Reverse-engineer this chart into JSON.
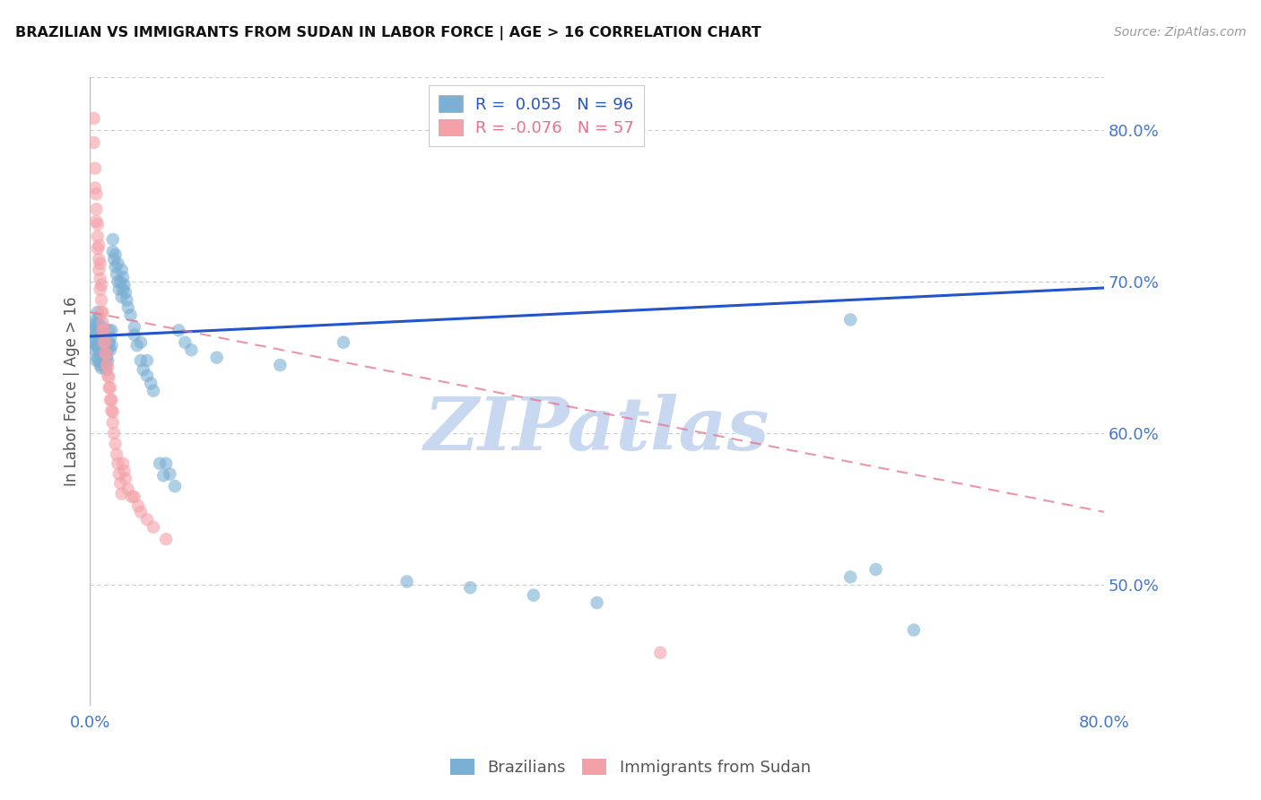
{
  "title": "BRAZILIAN VS IMMIGRANTS FROM SUDAN IN LABOR FORCE | AGE > 16 CORRELATION CHART",
  "source": "Source: ZipAtlas.com",
  "ylabel": "In Labor Force | Age > 16",
  "x_min": 0.0,
  "x_max": 0.8,
  "y_min": 0.42,
  "y_max": 0.835,
  "x_ticks": [
    0.0,
    0.1,
    0.2,
    0.3,
    0.4,
    0.5,
    0.6,
    0.7,
    0.8
  ],
  "x_tick_labels": [
    "0.0%",
    "",
    "",
    "",
    "",
    "",
    "",
    "",
    "80.0%"
  ],
  "y_ticks_right": [
    0.5,
    0.6,
    0.7,
    0.8
  ],
  "y_tick_labels_right": [
    "50.0%",
    "60.0%",
    "70.0%",
    "80.0%"
  ],
  "grid_color": "#cccccc",
  "background_color": "#ffffff",
  "blue_color": "#7bafd4",
  "pink_color": "#f4a0a8",
  "trend_blue_color": "#2255cc",
  "trend_pink_color": "#e8708a",
  "R_blue": 0.055,
  "N_blue": 96,
  "R_pink": -0.076,
  "N_pink": 57,
  "axis_color": "#bbbbbb",
  "tick_color": "#4477cc",
  "watermark": "ZIPatlas",
  "watermark_color": "#c8d8f0",
  "blue_trend_y0": 0.664,
  "blue_trend_y1": 0.696,
  "pink_trend_y0": 0.68,
  "pink_trend_y1": 0.548,
  "blue_scatter": [
    [
      0.003,
      0.66
    ],
    [
      0.003,
      0.668
    ],
    [
      0.004,
      0.655
    ],
    [
      0.004,
      0.663
    ],
    [
      0.004,
      0.672
    ],
    [
      0.005,
      0.648
    ],
    [
      0.005,
      0.658
    ],
    [
      0.005,
      0.665
    ],
    [
      0.005,
      0.67
    ],
    [
      0.005,
      0.675
    ],
    [
      0.006,
      0.65
    ],
    [
      0.006,
      0.658
    ],
    [
      0.006,
      0.665
    ],
    [
      0.006,
      0.672
    ],
    [
      0.006,
      0.68
    ],
    [
      0.007,
      0.648
    ],
    [
      0.007,
      0.655
    ],
    [
      0.007,
      0.66
    ],
    [
      0.007,
      0.668
    ],
    [
      0.007,
      0.675
    ],
    [
      0.008,
      0.645
    ],
    [
      0.008,
      0.655
    ],
    [
      0.008,
      0.66
    ],
    [
      0.008,
      0.667
    ],
    [
      0.009,
      0.643
    ],
    [
      0.009,
      0.652
    ],
    [
      0.009,
      0.658
    ],
    [
      0.009,
      0.663
    ],
    [
      0.009,
      0.668
    ],
    [
      0.01,
      0.648
    ],
    [
      0.01,
      0.656
    ],
    [
      0.01,
      0.662
    ],
    [
      0.01,
      0.67
    ],
    [
      0.011,
      0.645
    ],
    [
      0.011,
      0.653
    ],
    [
      0.011,
      0.66
    ],
    [
      0.012,
      0.648
    ],
    [
      0.012,
      0.655
    ],
    [
      0.013,
      0.642
    ],
    [
      0.013,
      0.65
    ],
    [
      0.014,
      0.648
    ],
    [
      0.014,
      0.655
    ],
    [
      0.015,
      0.66
    ],
    [
      0.015,
      0.668
    ],
    [
      0.016,
      0.655
    ],
    [
      0.016,
      0.663
    ],
    [
      0.017,
      0.658
    ],
    [
      0.017,
      0.668
    ],
    [
      0.018,
      0.72
    ],
    [
      0.018,
      0.728
    ],
    [
      0.019,
      0.715
    ],
    [
      0.02,
      0.71
    ],
    [
      0.02,
      0.718
    ],
    [
      0.021,
      0.705
    ],
    [
      0.022,
      0.7
    ],
    [
      0.022,
      0.712
    ],
    [
      0.023,
      0.695
    ],
    [
      0.024,
      0.7
    ],
    [
      0.025,
      0.69
    ],
    [
      0.025,
      0.708
    ],
    [
      0.026,
      0.695
    ],
    [
      0.026,
      0.703
    ],
    [
      0.027,
      0.698
    ],
    [
      0.028,
      0.693
    ],
    [
      0.029,
      0.688
    ],
    [
      0.03,
      0.683
    ],
    [
      0.032,
      0.678
    ],
    [
      0.035,
      0.67
    ],
    [
      0.035,
      0.665
    ],
    [
      0.037,
      0.658
    ],
    [
      0.04,
      0.66
    ],
    [
      0.04,
      0.648
    ],
    [
      0.042,
      0.642
    ],
    [
      0.045,
      0.638
    ],
    [
      0.045,
      0.648
    ],
    [
      0.048,
      0.633
    ],
    [
      0.05,
      0.628
    ],
    [
      0.055,
      0.58
    ],
    [
      0.058,
      0.572
    ],
    [
      0.06,
      0.58
    ],
    [
      0.063,
      0.573
    ],
    [
      0.067,
      0.565
    ],
    [
      0.07,
      0.668
    ],
    [
      0.075,
      0.66
    ],
    [
      0.08,
      0.655
    ],
    [
      0.1,
      0.65
    ],
    [
      0.15,
      0.645
    ],
    [
      0.2,
      0.66
    ],
    [
      0.25,
      0.502
    ],
    [
      0.3,
      0.498
    ],
    [
      0.35,
      0.493
    ],
    [
      0.4,
      0.488
    ],
    [
      0.6,
      0.675
    ],
    [
      0.6,
      0.505
    ],
    [
      0.62,
      0.51
    ],
    [
      0.65,
      0.47
    ]
  ],
  "pink_scatter": [
    [
      0.003,
      0.808
    ],
    [
      0.003,
      0.792
    ],
    [
      0.004,
      0.775
    ],
    [
      0.004,
      0.762
    ],
    [
      0.005,
      0.748
    ],
    [
      0.005,
      0.758
    ],
    [
      0.005,
      0.74
    ],
    [
      0.006,
      0.73
    ],
    [
      0.006,
      0.738
    ],
    [
      0.006,
      0.722
    ],
    [
      0.007,
      0.715
    ],
    [
      0.007,
      0.724
    ],
    [
      0.007,
      0.708
    ],
    [
      0.008,
      0.702
    ],
    [
      0.008,
      0.712
    ],
    [
      0.008,
      0.695
    ],
    [
      0.009,
      0.688
    ],
    [
      0.009,
      0.698
    ],
    [
      0.009,
      0.68
    ],
    [
      0.01,
      0.673
    ],
    [
      0.01,
      0.68
    ],
    [
      0.01,
      0.668
    ],
    [
      0.011,
      0.66
    ],
    [
      0.011,
      0.668
    ],
    [
      0.012,
      0.653
    ],
    [
      0.012,
      0.66
    ],
    [
      0.013,
      0.645
    ],
    [
      0.013,
      0.652
    ],
    [
      0.014,
      0.638
    ],
    [
      0.014,
      0.644
    ],
    [
      0.015,
      0.63
    ],
    [
      0.015,
      0.637
    ],
    [
      0.016,
      0.622
    ],
    [
      0.016,
      0.63
    ],
    [
      0.017,
      0.615
    ],
    [
      0.017,
      0.622
    ],
    [
      0.018,
      0.607
    ],
    [
      0.018,
      0.614
    ],
    [
      0.019,
      0.6
    ],
    [
      0.02,
      0.593
    ],
    [
      0.021,
      0.586
    ],
    [
      0.022,
      0.58
    ],
    [
      0.023,
      0.573
    ],
    [
      0.024,
      0.567
    ],
    [
      0.025,
      0.56
    ],
    [
      0.026,
      0.58
    ],
    [
      0.027,
      0.575
    ],
    [
      0.028,
      0.57
    ],
    [
      0.03,
      0.563
    ],
    [
      0.033,
      0.558
    ],
    [
      0.035,
      0.558
    ],
    [
      0.038,
      0.552
    ],
    [
      0.04,
      0.548
    ],
    [
      0.045,
      0.543
    ],
    [
      0.05,
      0.538
    ],
    [
      0.06,
      0.53
    ],
    [
      0.45,
      0.455
    ]
  ]
}
